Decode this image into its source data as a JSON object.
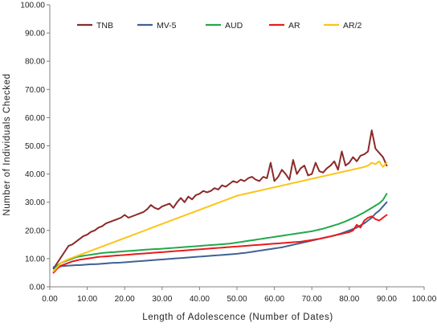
{
  "chart_data": {
    "type": "line",
    "title": "",
    "xlabel": "Length  of  Adolescence  (Number of Dates)",
    "ylabel": "Number  of  Individuals  Checked",
    "xlim": [
      0,
      100
    ],
    "ylim": [
      0,
      100
    ],
    "x_ticks": [
      "0.00",
      "10.00",
      "20.00",
      "30.00",
      "40.00",
      "50.00",
      "60.00",
      "70.00",
      "80.00",
      "90.00",
      "100.00"
    ],
    "y_ticks": [
      "0.00",
      "10.00",
      "20.00",
      "30.00",
      "40.00",
      "50.00",
      "60.00",
      "70.00",
      "80.00",
      "90.00",
      "100.00"
    ],
    "grid": false,
    "legend_position": "top",
    "x": [
      1,
      2,
      3,
      4,
      5,
      6,
      7,
      8,
      9,
      10,
      11,
      12,
      13,
      14,
      15,
      16,
      17,
      18,
      19,
      20,
      21,
      22,
      23,
      24,
      25,
      26,
      27,
      28,
      29,
      30,
      31,
      32,
      33,
      34,
      35,
      36,
      37,
      38,
      39,
      40,
      41,
      42,
      43,
      44,
      45,
      46,
      47,
      48,
      49,
      50,
      51,
      52,
      53,
      54,
      55,
      56,
      57,
      58,
      59,
      60,
      61,
      62,
      63,
      64,
      65,
      66,
      67,
      68,
      69,
      70,
      71,
      72,
      73,
      74,
      75,
      76,
      77,
      78,
      79,
      80,
      81,
      82,
      83,
      84,
      85,
      86,
      87,
      88,
      89,
      90
    ],
    "series": [
      {
        "name": "TNB",
        "color": "#8B2A2A",
        "values": [
          6.5,
          8.5,
          10.5,
          12.5,
          14.5,
          15.0,
          16.0,
          17.0,
          18.0,
          18.5,
          19.5,
          20.0,
          21.0,
          21.5,
          22.5,
          23.0,
          23.5,
          24.0,
          24.5,
          25.5,
          24.5,
          25.0,
          25.5,
          26.0,
          26.5,
          27.5,
          29.0,
          28.0,
          27.5,
          28.5,
          29.0,
          29.5,
          28.0,
          30.0,
          31.5,
          30.0,
          32.0,
          31.0,
          32.5,
          33.0,
          34.0,
          33.5,
          34.0,
          35.0,
          34.5,
          36.0,
          35.5,
          36.5,
          37.5,
          37.0,
          38.0,
          37.5,
          38.5,
          39.0,
          38.0,
          37.5,
          39.0,
          38.5,
          44.0,
          37.5,
          39.0,
          41.5,
          40.0,
          38.0,
          45.0,
          40.0,
          42.0,
          43.0,
          39.5,
          40.0,
          44.0,
          41.0,
          40.5,
          42.0,
          43.0,
          44.5,
          41.5,
          48.0,
          43.0,
          44.0,
          46.0,
          44.5,
          46.5,
          47.0,
          48.0,
          55.5,
          49.0,
          47.5,
          46.0,
          43.0
        ]
      },
      {
        "name": "MV-5",
        "color": "#3F6193",
        "values": [
          7.0,
          7.1,
          7.3,
          7.4,
          7.5,
          7.6,
          7.7,
          7.7,
          7.8,
          7.9,
          8.0,
          8.0,
          8.1,
          8.2,
          8.3,
          8.4,
          8.5,
          8.5,
          8.6,
          8.7,
          8.8,
          8.9,
          9.0,
          9.1,
          9.2,
          9.3,
          9.4,
          9.5,
          9.6,
          9.7,
          9.8,
          9.9,
          10.0,
          10.1,
          10.2,
          10.3,
          10.4,
          10.5,
          10.6,
          10.7,
          10.8,
          10.9,
          11.0,
          11.1,
          11.2,
          11.3,
          11.4,
          11.5,
          11.6,
          11.7,
          11.9,
          12.0,
          12.2,
          12.4,
          12.6,
          12.8,
          13.0,
          13.2,
          13.4,
          13.6,
          13.8,
          14.0,
          14.3,
          14.6,
          14.9,
          15.2,
          15.5,
          15.8,
          16.1,
          16.4,
          16.7,
          17.0,
          17.3,
          17.6,
          17.9,
          18.2,
          18.6,
          19.0,
          19.5,
          20.0,
          20.5,
          21.0,
          21.8,
          22.5,
          23.5,
          24.5,
          26.0,
          27.0,
          28.5,
          30.0
        ]
      },
      {
        "name": "AUD",
        "color": "#22A84B",
        "values": [
          5.5,
          7.5,
          8.5,
          9.0,
          9.5,
          10.0,
          10.5,
          10.8,
          11.0,
          11.2,
          11.4,
          11.6,
          11.8,
          12.0,
          12.1,
          12.2,
          12.3,
          12.4,
          12.5,
          12.6,
          12.7,
          12.8,
          12.9,
          13.0,
          13.1,
          13.2,
          13.3,
          13.4,
          13.4,
          13.5,
          13.6,
          13.7,
          13.8,
          13.9,
          14.0,
          14.1,
          14.2,
          14.3,
          14.4,
          14.5,
          14.6,
          14.7,
          14.8,
          14.9,
          15.0,
          15.1,
          15.2,
          15.3,
          15.5,
          15.7,
          15.9,
          16.1,
          16.3,
          16.5,
          16.7,
          16.9,
          17.1,
          17.3,
          17.5,
          17.7,
          17.9,
          18.1,
          18.3,
          18.5,
          18.7,
          18.9,
          19.1,
          19.3,
          19.5,
          19.7,
          20.0,
          20.3,
          20.6,
          21.0,
          21.4,
          21.8,
          22.2,
          22.7,
          23.2,
          23.8,
          24.4,
          25.0,
          25.7,
          26.4,
          27.2,
          28.0,
          28.8,
          29.6,
          30.8,
          33.0
        ]
      },
      {
        "name": "AR",
        "color": "#E81B1B",
        "values": [
          5.0,
          6.5,
          7.5,
          8.0,
          8.5,
          9.0,
          9.3,
          9.6,
          9.8,
          10.0,
          10.2,
          10.4,
          10.6,
          10.7,
          10.8,
          10.9,
          11.0,
          11.1,
          11.2,
          11.3,
          11.4,
          11.5,
          11.6,
          11.7,
          11.8,
          11.9,
          12.0,
          12.1,
          12.2,
          12.3,
          12.4,
          12.5,
          12.6,
          12.7,
          12.8,
          12.9,
          13.0,
          13.1,
          13.2,
          13.3,
          13.4,
          13.5,
          13.6,
          13.7,
          13.8,
          13.9,
          14.0,
          14.1,
          14.2,
          14.3,
          14.4,
          14.5,
          14.6,
          14.7,
          14.8,
          14.9,
          15.0,
          15.1,
          15.2,
          15.3,
          15.4,
          15.5,
          15.6,
          15.7,
          15.8,
          15.9,
          16.0,
          16.2,
          16.4,
          16.6,
          16.8,
          17.0,
          17.3,
          17.6,
          17.9,
          18.2,
          18.5,
          18.8,
          19.1,
          19.4,
          20.0,
          22.0,
          21.0,
          23.5,
          24.5,
          25.0,
          24.0,
          23.5,
          24.5,
          25.5
        ]
      },
      {
        "name": "AR/2",
        "color": "#FCC419",
        "values": [
          5.5,
          7.0,
          8.5,
          9.2,
          9.8,
          10.3,
          10.8,
          11.3,
          11.8,
          12.3,
          12.8,
          13.3,
          13.8,
          14.3,
          14.8,
          15.3,
          15.8,
          16.3,
          16.8,
          17.3,
          17.8,
          18.3,
          18.8,
          19.3,
          19.8,
          20.3,
          20.8,
          21.3,
          21.8,
          22.3,
          22.8,
          23.3,
          23.8,
          24.3,
          24.8,
          25.3,
          25.8,
          26.3,
          26.8,
          27.3,
          27.8,
          28.3,
          28.8,
          29.3,
          29.8,
          30.3,
          30.8,
          31.3,
          31.8,
          32.3,
          32.6,
          32.9,
          33.2,
          33.5,
          33.8,
          34.1,
          34.4,
          34.7,
          35.0,
          35.3,
          35.6,
          35.9,
          36.2,
          36.5,
          36.8,
          37.1,
          37.4,
          37.7,
          38.0,
          38.3,
          38.6,
          38.9,
          39.2,
          39.5,
          39.8,
          40.1,
          40.4,
          40.7,
          41.0,
          41.3,
          41.6,
          41.9,
          42.2,
          42.5,
          43.0,
          44.0,
          43.5,
          44.5,
          42.5,
          44.0
        ]
      }
    ]
  }
}
